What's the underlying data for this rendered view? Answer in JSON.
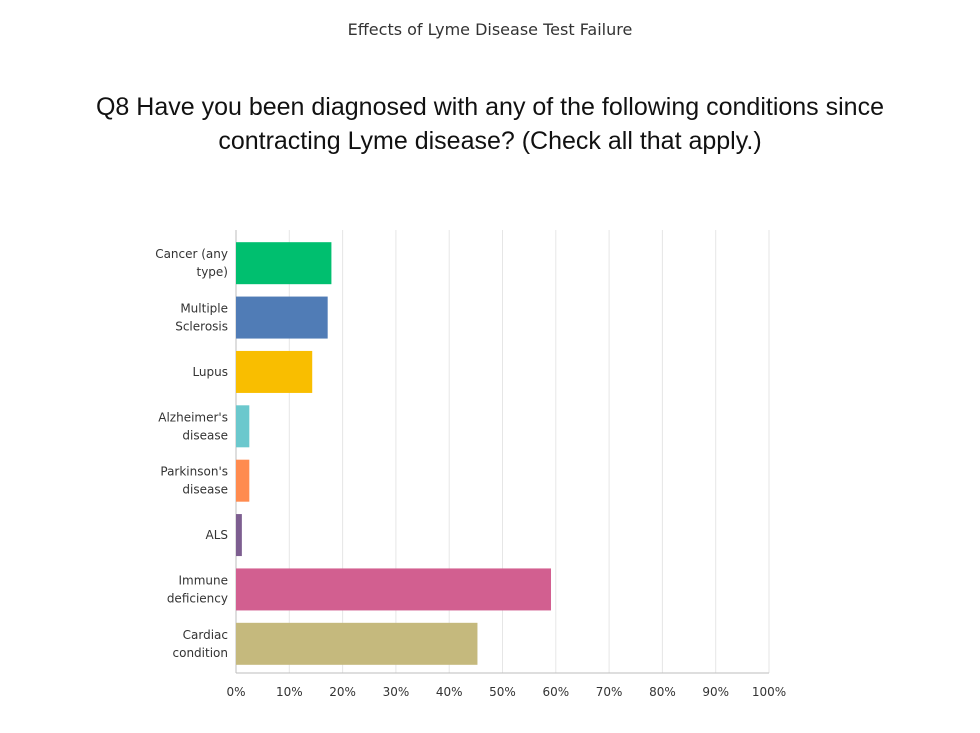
{
  "survey_title": "Effects of Lyme Disease Test Failure",
  "question": "Q8 Have you been diagnosed with any of the following conditions since contracting Lyme disease? (Check all that apply.)",
  "chart_data": {
    "type": "bar",
    "orientation": "horizontal",
    "categories": [
      [
        "Cancer (any",
        "type)"
      ],
      [
        "Multiple",
        "Sclerosis"
      ],
      [
        "Lupus"
      ],
      [
        "Alzheimer's",
        "disease"
      ],
      [
        "Parkinson's",
        "disease"
      ],
      [
        "ALS"
      ],
      [
        "Immune",
        "deficiency"
      ],
      [
        "Cardiac",
        "condition"
      ]
    ],
    "values": [
      17.9,
      17.2,
      14.3,
      2.5,
      2.5,
      1.1,
      59.1,
      45.3
    ],
    "colors": [
      "#00BF6F",
      "#507CB6",
      "#F9BE00",
      "#6BC8CD",
      "#FF8B4F",
      "#7D5E90",
      "#D25F90",
      "#C5B97D"
    ],
    "x_ticks": [
      "0%",
      "10%",
      "20%",
      "30%",
      "40%",
      "50%",
      "60%",
      "70%",
      "80%",
      "90%",
      "100%"
    ],
    "xlim": [
      0,
      100
    ],
    "grid": true
  }
}
